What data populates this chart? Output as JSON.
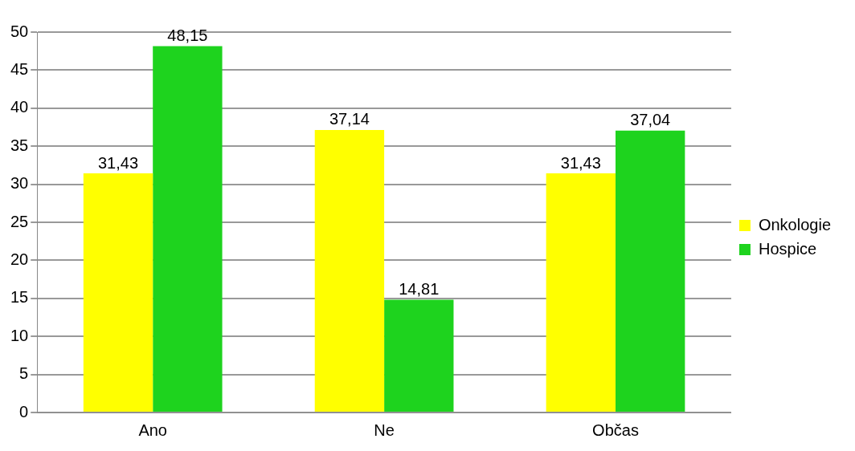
{
  "chart_data": {
    "type": "bar",
    "categories": [
      "Ano",
      "Ne",
      "Občas"
    ],
    "series": [
      {
        "name": "Onkologie",
        "color": "#ffff00",
        "values": [
          31.43,
          37.14,
          31.43
        ],
        "value_labels": [
          "31,43",
          "37,14",
          "31,43"
        ]
      },
      {
        "name": "Hospice",
        "color": "#1ed31e",
        "values": [
          48.15,
          14.81,
          37.04
        ],
        "value_labels": [
          "48,15",
          "14,81",
          "37,04"
        ]
      }
    ],
    "ylim": [
      0,
      50
    ],
    "yticks": [
      0,
      5,
      10,
      15,
      20,
      25,
      30,
      35,
      40,
      45,
      50
    ],
    "grid": "y",
    "legend": "right"
  }
}
